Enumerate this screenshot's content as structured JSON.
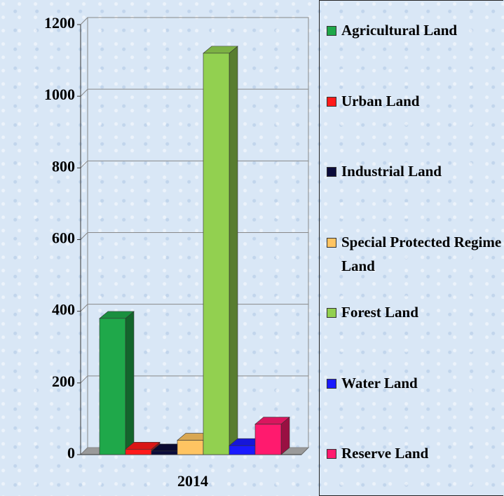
{
  "chart_data": {
    "type": "bar3d",
    "categories": [
      "2014"
    ],
    "series": [
      {
        "name": "Agricultural Land",
        "color": "#1fa84a",
        "values": [
          380
        ]
      },
      {
        "name": "Urban Land",
        "color": "#ff1a1a",
        "values": [
          15
        ]
      },
      {
        "name": "Industrial Land",
        "color": "#0b0b3a",
        "values": [
          10
        ]
      },
      {
        "name": "Special Protected Regime Land",
        "color": "#ffc462",
        "values": [
          40
        ]
      },
      {
        "name": "Forest Land",
        "color": "#92d050",
        "values": [
          1120
        ]
      },
      {
        "name": "Water Land",
        "color": "#1a1aff",
        "values": [
          25
        ]
      },
      {
        "name": "Reserve Land",
        "color": "#ff1a6e",
        "values": [
          85
        ]
      }
    ],
    "ylim": [
      0,
      1200
    ],
    "yticks": [
      0,
      200,
      400,
      600,
      800,
      1000,
      1200
    ],
    "grid": true,
    "legend": "right"
  }
}
